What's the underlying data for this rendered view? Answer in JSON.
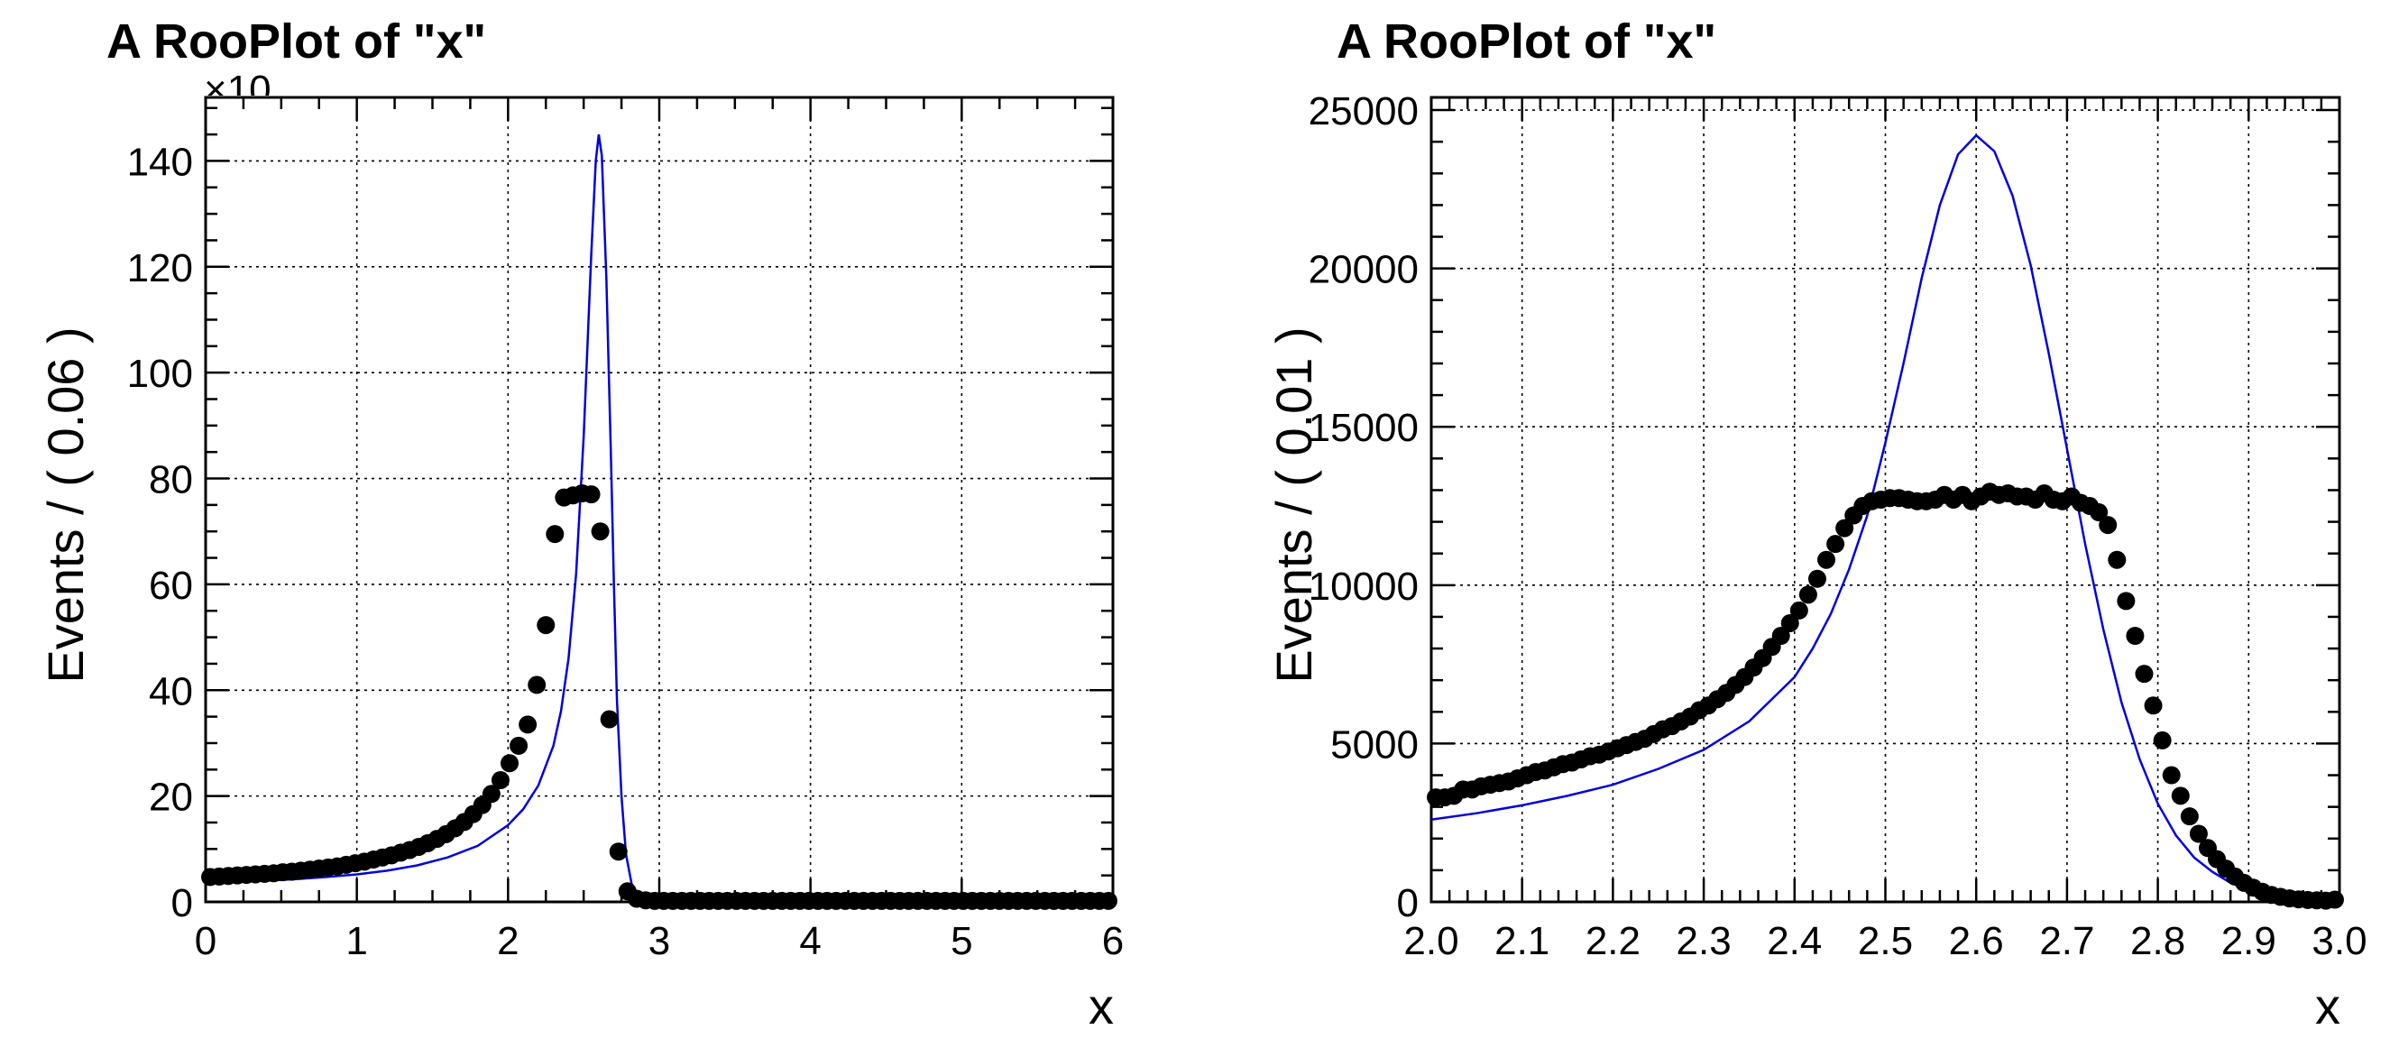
{
  "chart_data": [
    {
      "type": "scatter",
      "title": "A RooPlot of \"x\"",
      "xlabel": "x",
      "ylabel": "Events / ( 0.06 )",
      "y_multiplier_label": "×10",
      "xlim": [
        0,
        6
      ],
      "ylim": [
        0,
        152
      ],
      "xticks": [
        0,
        1,
        2,
        3,
        4,
        5,
        6
      ],
      "yticks": [
        0,
        20,
        40,
        60,
        80,
        100,
        120,
        140
      ],
      "grid": true,
      "series": [
        {
          "kind": "points",
          "x": [
            0.03,
            0.09,
            0.15,
            0.21,
            0.27,
            0.33,
            0.39,
            0.45,
            0.51,
            0.57,
            0.63,
            0.69,
            0.75,
            0.81,
            0.87,
            0.93,
            0.99,
            1.05,
            1.11,
            1.17,
            1.23,
            1.29,
            1.35,
            1.41,
            1.47,
            1.53,
            1.59,
            1.65,
            1.71,
            1.77,
            1.83,
            1.89,
            1.95,
            2.01,
            2.07,
            2.13,
            2.19,
            2.25,
            2.31,
            2.37,
            2.43,
            2.49,
            2.55,
            2.61,
            2.67,
            2.73,
            2.79,
            2.85,
            2.91,
            2.97,
            3.03,
            3.09,
            3.15,
            3.21,
            3.27,
            3.33,
            3.39,
            3.45,
            3.51,
            3.57,
            3.63,
            3.69,
            3.75,
            3.81,
            3.87,
            3.93,
            3.99,
            4.05,
            4.11,
            4.17,
            4.23,
            4.29,
            4.35,
            4.41,
            4.47,
            4.53,
            4.59,
            4.65,
            4.71,
            4.77,
            4.83,
            4.89,
            4.95,
            5.01,
            5.07,
            5.13,
            5.19,
            5.25,
            5.31,
            5.37,
            5.43,
            5.49,
            5.55,
            5.61,
            5.67,
            5.73,
            5.79,
            5.85,
            5.91,
            5.97
          ],
          "y": [
            4.7,
            4.8,
            4.9,
            5.0,
            5.1,
            5.2,
            5.3,
            5.4,
            5.6,
            5.7,
            5.9,
            6.1,
            6.3,
            6.5,
            6.7,
            7.0,
            7.3,
            7.6,
            8.0,
            8.4,
            8.8,
            9.3,
            9.8,
            10.4,
            11.1,
            11.9,
            12.8,
            13.9,
            15.1,
            16.6,
            18.3,
            20.4,
            23.0,
            26.2,
            29.5,
            33.5,
            41.0,
            52.3,
            69.5,
            76.4,
            76.8,
            77.2,
            77.0,
            70.0,
            34.5,
            9.5,
            2.0,
            0.6,
            0.3,
            0.2,
            0.2,
            0.2,
            0.2,
            0.2,
            0.2,
            0.2,
            0.2,
            0.2,
            0.2,
            0.2,
            0.2,
            0.2,
            0.2,
            0.2,
            0.2,
            0.2,
            0.2,
            0.2,
            0.2,
            0.2,
            0.2,
            0.2,
            0.2,
            0.2,
            0.2,
            0.2,
            0.2,
            0.2,
            0.2,
            0.2,
            0.2,
            0.2,
            0.2,
            0.2,
            0.2,
            0.2,
            0.2,
            0.2,
            0.2,
            0.2,
            0.2,
            0.2,
            0.2,
            0.2,
            0.2,
            0.2,
            0.2,
            0.2,
            0.2,
            0.2
          ]
        },
        {
          "kind": "line",
          "color": "#0000dd",
          "x": [
            0.0,
            0.2,
            0.4,
            0.6,
            0.8,
            1.0,
            1.2,
            1.4,
            1.6,
            1.8,
            2.0,
            2.1,
            2.2,
            2.3,
            2.35,
            2.4,
            2.45,
            2.5,
            2.55,
            2.58,
            2.6,
            2.62,
            2.65,
            2.68,
            2.7,
            2.72,
            2.75,
            2.78,
            2.82,
            2.86,
            2.9,
            2.95,
            3.0,
            3.5,
            4.0,
            5.0,
            6.0
          ],
          "y": [
            3.6,
            3.8,
            4.0,
            4.3,
            4.7,
            5.2,
            5.9,
            6.9,
            8.4,
            10.6,
            14.5,
            17.5,
            22.0,
            29.5,
            36.0,
            46.0,
            62.0,
            88.0,
            122.0,
            140.0,
            145.0,
            141.0,
            118.0,
            85.0,
            60.0,
            38.0,
            20.0,
            9.0,
            3.0,
            1.0,
            0.4,
            0.1,
            0.0,
            0.0,
            0.0,
            0.0,
            0.0
          ]
        }
      ]
    },
    {
      "type": "scatter",
      "title": "A RooPlot of \"x\"",
      "xlabel": "x",
      "ylabel": "Events / ( 0.01 )",
      "xlim": [
        2.0,
        3.0
      ],
      "ylim": [
        0,
        25400
      ],
      "xticks": [
        2.0,
        2.1,
        2.2,
        2.3,
        2.4,
        2.5,
        2.6,
        2.7,
        2.8,
        2.9,
        3.0
      ],
      "xtick_labels": [
        "2.0",
        "2.1",
        "2.2",
        "2.3",
        "2.4",
        "2.5",
        "2.6",
        "2.7",
        "2.8",
        "2.9",
        "3.0"
      ],
      "yticks": [
        0,
        5000,
        10000,
        15000,
        20000,
        25000
      ],
      "grid": true,
      "series": [
        {
          "kind": "points",
          "x": [
            2.005,
            2.015,
            2.025,
            2.035,
            2.045,
            2.055,
            2.065,
            2.075,
            2.085,
            2.095,
            2.105,
            2.115,
            2.125,
            2.135,
            2.145,
            2.155,
            2.165,
            2.175,
            2.185,
            2.195,
            2.205,
            2.215,
            2.225,
            2.235,
            2.245,
            2.255,
            2.265,
            2.275,
            2.285,
            2.295,
            2.305,
            2.315,
            2.325,
            2.335,
            2.345,
            2.355,
            2.365,
            2.375,
            2.385,
            2.395,
            2.405,
            2.415,
            2.425,
            2.435,
            2.445,
            2.455,
            2.465,
            2.475,
            2.485,
            2.495,
            2.505,
            2.515,
            2.525,
            2.535,
            2.545,
            2.555,
            2.565,
            2.575,
            2.585,
            2.595,
            2.605,
            2.615,
            2.625,
            2.635,
            2.645,
            2.655,
            2.665,
            2.675,
            2.685,
            2.695,
            2.705,
            2.715,
            2.725,
            2.735,
            2.745,
            2.755,
            2.765,
            2.775,
            2.785,
            2.795,
            2.805,
            2.815,
            2.825,
            2.835,
            2.845,
            2.855,
            2.865,
            2.875,
            2.885,
            2.895,
            2.905,
            2.915,
            2.925,
            2.935,
            2.945,
            2.955,
            2.965,
            2.975,
            2.985,
            2.995
          ],
          "y": [
            3300,
            3300,
            3350,
            3550,
            3550,
            3650,
            3700,
            3750,
            3800,
            3900,
            4000,
            4100,
            4150,
            4250,
            4350,
            4400,
            4500,
            4600,
            4650,
            4750,
            4850,
            4950,
            5050,
            5150,
            5300,
            5450,
            5550,
            5700,
            5850,
            6050,
            6200,
            6400,
            6600,
            6850,
            7100,
            7400,
            7700,
            8050,
            8400,
            8800,
            9200,
            9700,
            10200,
            10800,
            11300,
            11800,
            12200,
            12500,
            12650,
            12700,
            12750,
            12750,
            12700,
            12650,
            12650,
            12700,
            12850,
            12700,
            12850,
            12650,
            12800,
            12950,
            12850,
            12900,
            12800,
            12800,
            12700,
            12900,
            12700,
            12650,
            12800,
            12600,
            12500,
            12300,
            11900,
            10800,
            9500,
            8400,
            7200,
            6200,
            5100,
            4000,
            3350,
            2700,
            2150,
            1700,
            1350,
            1050,
            800,
            600,
            450,
            320,
            220,
            160,
            110,
            80,
            60,
            50,
            40,
            70
          ]
        },
        {
          "kind": "line",
          "color": "#0000dd",
          "x": [
            2.0,
            2.05,
            2.1,
            2.15,
            2.2,
            2.25,
            2.3,
            2.35,
            2.4,
            2.42,
            2.44,
            2.46,
            2.48,
            2.5,
            2.52,
            2.54,
            2.56,
            2.58,
            2.6,
            2.62,
            2.64,
            2.66,
            2.68,
            2.7,
            2.72,
            2.74,
            2.76,
            2.78,
            2.8,
            2.82,
            2.84,
            2.86,
            2.88,
            2.9,
            2.92,
            2.94,
            2.96,
            2.98,
            3.0
          ],
          "y": [
            2600,
            2800,
            3050,
            3350,
            3700,
            4200,
            4800,
            5700,
            7100,
            8000,
            9100,
            10500,
            12200,
            14500,
            17000,
            19700,
            22000,
            23600,
            24200,
            23700,
            22300,
            20100,
            17300,
            14300,
            11300,
            8600,
            6300,
            4500,
            3100,
            2100,
            1400,
            950,
            600,
            380,
            240,
            150,
            100,
            80,
            70
          ]
        }
      ]
    }
  ]
}
